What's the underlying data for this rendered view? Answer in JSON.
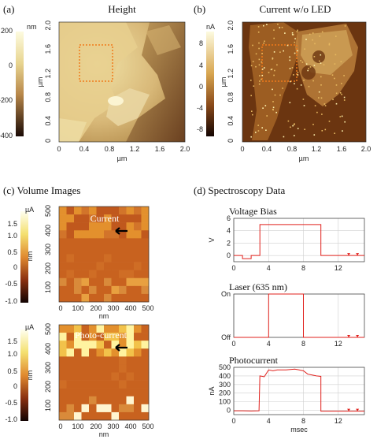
{
  "panels": {
    "a": {
      "label": "(a)",
      "title": "Height"
    },
    "b": {
      "label": "(b)",
      "title": "Current w/o LED"
    },
    "c": {
      "label": "(c) Volume Images"
    },
    "d": {
      "label": "(d)  Spectroscopy Data"
    }
  },
  "height_map": {
    "colorbar_unit": "nm",
    "colorbar_ticks": [
      "200",
      "0",
      "-200",
      "-400"
    ],
    "x_ticks": [
      "0",
      "0.4",
      "0.8",
      "1.2",
      "1.6",
      "2.0"
    ],
    "y_ticks": [
      "2.0",
      "1.6",
      "1.2",
      "0.8",
      "0.4",
      "0"
    ],
    "xlabel": "µm",
    "ylabel": "µm"
  },
  "current_map": {
    "colorbar_unit": "nA",
    "colorbar_ticks": [
      "8",
      "4",
      "0",
      "-4",
      "-8"
    ],
    "x_ticks": [
      "0",
      "0.4",
      "0.8",
      "1.2",
      "1.6",
      "2.0"
    ],
    "y_ticks": [
      "2.0",
      "1.6",
      "1.2",
      "0.8",
      "0.4",
      "0"
    ],
    "xlabel": "µm",
    "ylabel": "µm"
  },
  "volume_current": {
    "label": "Current",
    "colorbar_unit": "µA",
    "colorbar_ticks": [
      "1.5",
      "1.0",
      "0.5",
      "0",
      "-0.5",
      "-1.0"
    ],
    "x_ticks": [
      "0",
      "100",
      "200",
      "300",
      "400",
      "500"
    ],
    "y_ticks": [
      "500",
      "400",
      "300",
      "200",
      "100"
    ],
    "xlabel": "nm",
    "ylabel": "nm"
  },
  "volume_photo": {
    "label": "Photo-current",
    "colorbar_unit": "µA",
    "colorbar_ticks": [
      "1.5",
      "1.0",
      "0.5",
      "0",
      "-0.5",
      "-1.0"
    ],
    "x_ticks": [
      "0",
      "100",
      "200",
      "300",
      "400",
      "500"
    ],
    "y_ticks": [
      "500",
      "400",
      "300",
      "200",
      "100"
    ],
    "xlabel": "nm",
    "ylabel": "nm"
  },
  "chart_data": [
    {
      "type": "line",
      "title": "Voltage Bias",
      "ylabel": "V",
      "ylim": [
        -1,
        6
      ],
      "yticks": [
        "6",
        "4",
        "2",
        "0"
      ],
      "xticks": [
        "0",
        "4",
        "8",
        "12"
      ],
      "series": [
        {
          "x": [
            0,
            1,
            1,
            2,
            2,
            3,
            3,
            10,
            10,
            15
          ],
          "y": [
            0,
            0,
            -0.5,
            -0.5,
            0,
            0,
            5,
            5,
            0,
            0
          ]
        }
      ]
    },
    {
      "type": "line",
      "title": "Laser (635 nm)",
      "ylabel": "",
      "ylim": [
        0,
        1
      ],
      "yticks": [
        "On",
        "Off"
      ],
      "xticks": [
        "0",
        "4",
        "8",
        "12"
      ],
      "series": [
        {
          "x": [
            0,
            4,
            4,
            8,
            8,
            15
          ],
          "y": [
            0,
            0,
            1,
            1,
            0,
            0
          ]
        }
      ]
    },
    {
      "type": "line",
      "title": "Photocurrent",
      "ylabel": "nA",
      "ylim": [
        -50,
        500
      ],
      "yticks": [
        "500",
        "400",
        "300",
        "200",
        "100",
        "0"
      ],
      "xticks": [
        "0",
        "4",
        "8",
        "12"
      ],
      "xlabel": "msec",
      "series": [
        {
          "x": [
            0,
            1,
            2,
            2.9,
            3,
            3.5,
            4,
            4.5,
            5,
            6,
            7,
            7.5,
            8,
            8.5,
            9,
            9.5,
            10,
            10,
            15
          ],
          "y": [
            -5,
            -5,
            -8,
            -5,
            400,
            390,
            470,
            460,
            470,
            470,
            480,
            470,
            460,
            420,
            410,
            400,
            395,
            -10,
            -10
          ]
        }
      ]
    }
  ]
}
